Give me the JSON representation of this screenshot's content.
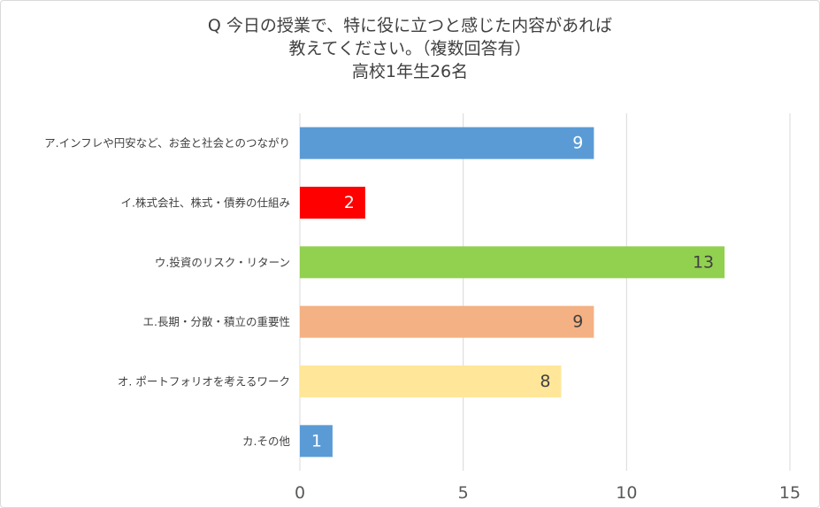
{
  "chart_data": {
    "type": "bar",
    "orientation": "horizontal",
    "title_lines": [
      "Q 今日の授業で、特に役に立つと感じた内容があれば",
      "教えてください。（複数回答有）",
      "高校1年生26名"
    ],
    "categories": [
      "ア.インフレや円安など、お金と社会とのつながり",
      "イ.株式会社、株式・債券の仕組み",
      "ウ.投資のリスク・リターン",
      "エ.長期・分散・積立の重要性",
      "オ. ポートフォリオを考えるワーク",
      "カ.その他"
    ],
    "values": [
      9,
      2,
      13,
      9,
      8,
      1
    ],
    "colors": [
      "#5b9bd5",
      "#ff0000",
      "#92d050",
      "#f4b183",
      "#ffe699",
      "#5b9bd5"
    ],
    "label_colors": [
      "#ffffff",
      "#ffffff",
      "#404040",
      "#404040",
      "#404040",
      "#ffffff"
    ],
    "xlim": [
      0,
      15
    ],
    "xticks": [
      0,
      5,
      10,
      15
    ],
    "grid": true,
    "legend": "none",
    "xlabel": "",
    "ylabel": ""
  }
}
